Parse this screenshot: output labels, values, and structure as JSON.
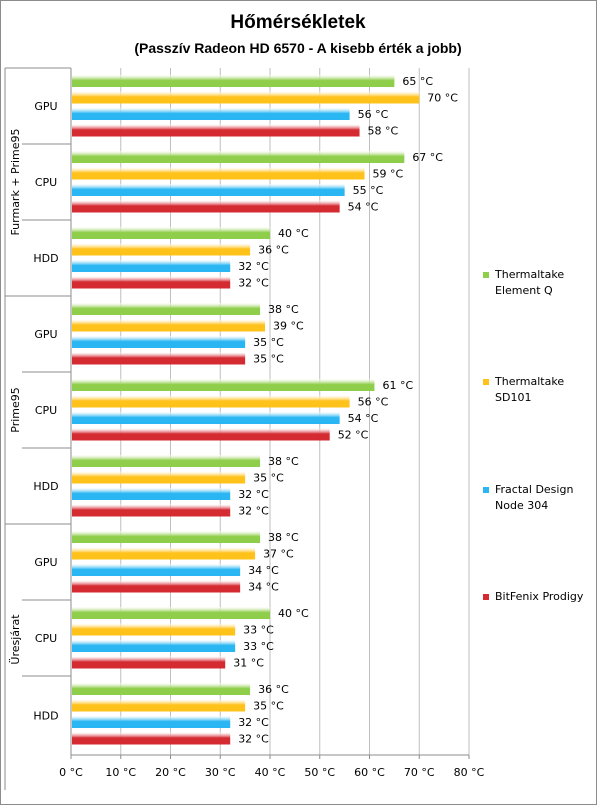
{
  "chart_data": {
    "type": "bar",
    "orientation": "horizontal",
    "title": "Hőmérsékletek",
    "subtitle": "(Passzív Radeon HD 6570 - A kisebb érték a jobb)",
    "xlim": [
      0,
      80
    ],
    "x_ticks": [
      "0 °C",
      "10 °C",
      "20 °C",
      "30 °C",
      "40 °C",
      "50 °C",
      "60 °C",
      "70 °C",
      "80 °C"
    ],
    "value_suffix": " °C",
    "grid": true,
    "legend_position": "right",
    "groups": [
      {
        "label": "Furmark + Prime95",
        "categories": [
          "GPU",
          "CPU",
          "HDD"
        ]
      },
      {
        "label": "Prime95",
        "categories": [
          "GPU",
          "CPU",
          "HDD"
        ]
      },
      {
        "label": "Üresjárat",
        "categories": [
          "GPU",
          "CPU",
          "HDD"
        ]
      }
    ],
    "series": [
      {
        "name": "Thermaltake Element Q",
        "color": "#8fce4a",
        "values": [
          65,
          67,
          40,
          38,
          61,
          38,
          38,
          40,
          36
        ]
      },
      {
        "name": "Thermaltake SD101",
        "color": "#ffc21a",
        "values": [
          70,
          59,
          36,
          39,
          56,
          35,
          37,
          33,
          35
        ]
      },
      {
        "name": "Fractal Design Node 304",
        "color": "#29b6f2",
        "values": [
          56,
          55,
          32,
          35,
          54,
          32,
          34,
          33,
          32
        ]
      },
      {
        "name": "BitFenix Prodigy",
        "color": "#d42a32",
        "values": [
          58,
          54,
          32,
          35,
          52,
          32,
          34,
          31,
          32
        ]
      }
    ],
    "legend": [
      {
        "lines": [
          "Thermaltake",
          "Element Q"
        ],
        "color": "#8fce4a"
      },
      {
        "lines": [
          "Thermaltake",
          "SD101"
        ],
        "color": "#ffc21a"
      },
      {
        "lines": [
          "Fractal Design",
          "Node 304"
        ],
        "color": "#29b6f2"
      },
      {
        "lines": [
          "BitFenix Prodigy"
        ],
        "color": "#d42a32"
      }
    ]
  }
}
